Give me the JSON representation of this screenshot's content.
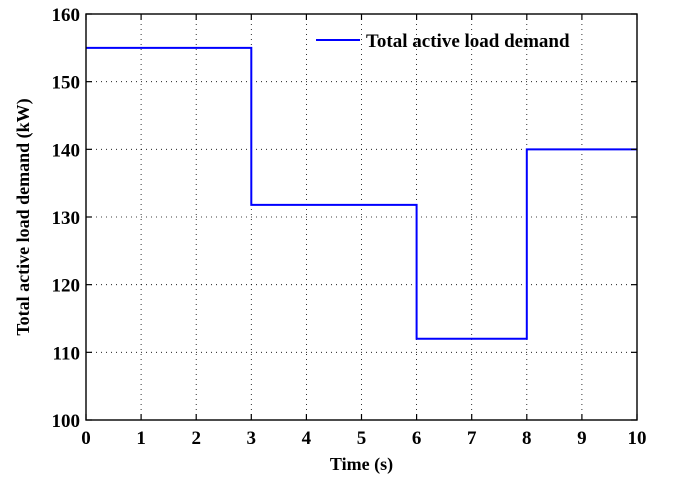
{
  "chart_data": {
    "type": "line",
    "step": true,
    "xlabel": "Time (s)",
    "ylabel": "Total active load demand (kW)",
    "xlim": [
      0,
      10
    ],
    "ylim": [
      100,
      160
    ],
    "xticks": [
      0,
      1,
      2,
      3,
      4,
      5,
      6,
      7,
      8,
      9,
      10
    ],
    "yticks": [
      100,
      110,
      120,
      130,
      140,
      150,
      160
    ],
    "xtick_labels": [
      "0",
      "1",
      "2",
      "3",
      "4",
      "5",
      "6",
      "7",
      "8",
      "9",
      "10"
    ],
    "ytick_labels": [
      "100",
      "110",
      "120",
      "130",
      "140",
      "150",
      "160"
    ],
    "grid": true,
    "legend_position": "top-right",
    "series": [
      {
        "name": "Total active load demand",
        "color": "#0000ff",
        "x": [
          0,
          3,
          3,
          6,
          6,
          8,
          8,
          10
        ],
        "y": [
          155,
          155,
          131.8,
          131.8,
          112,
          112,
          140,
          140
        ]
      }
    ]
  }
}
